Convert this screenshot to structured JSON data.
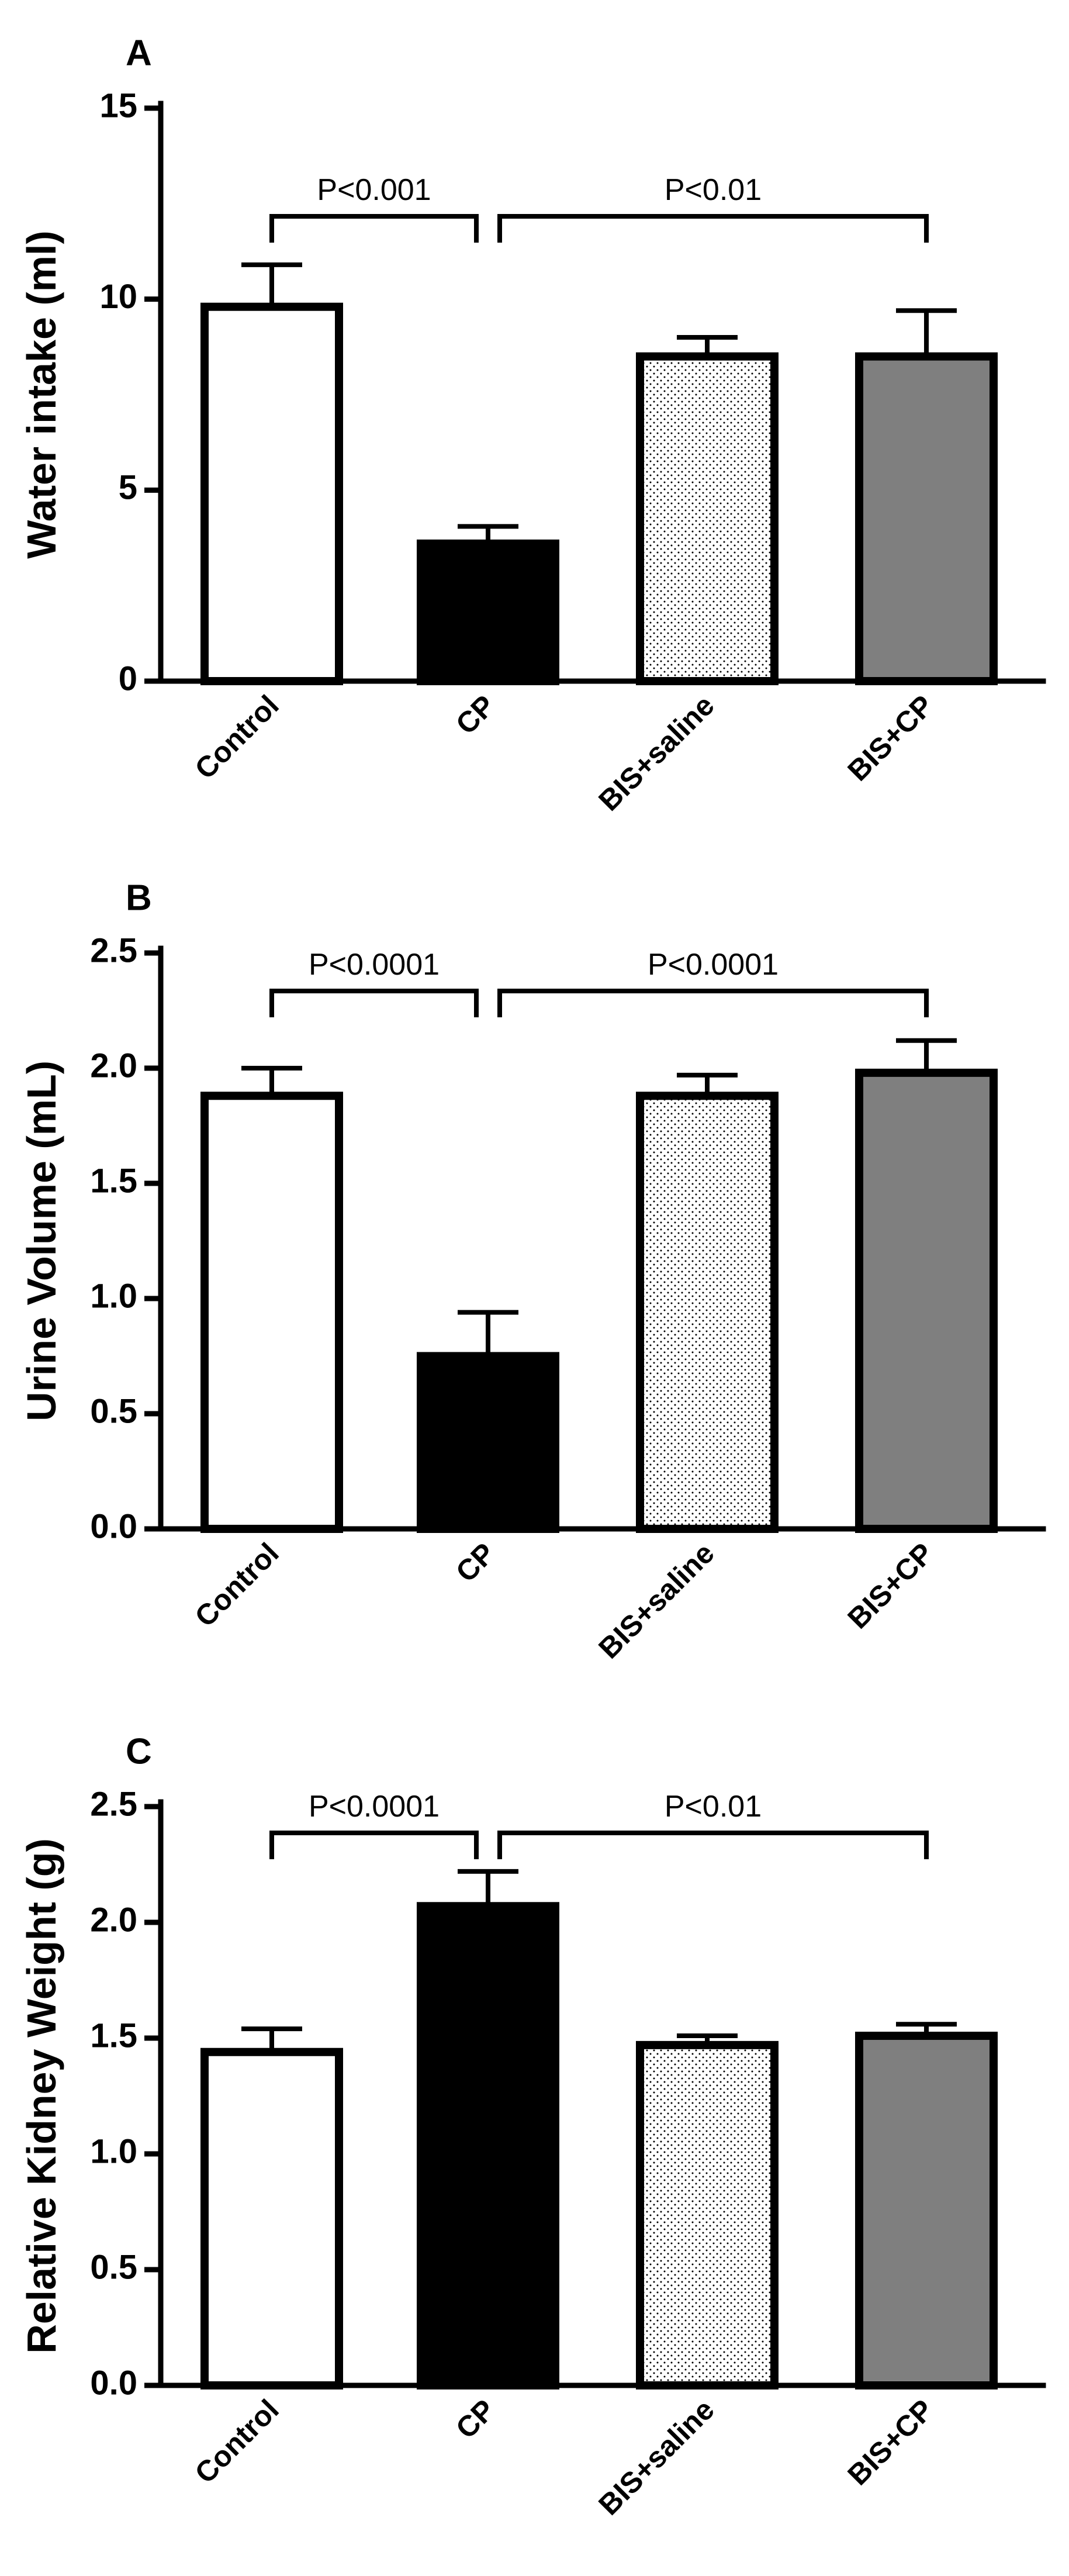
{
  "chart_data": [
    {
      "type": "bar",
      "panel": "A",
      "title": "",
      "xlabel": "",
      "ylabel": "Water intake (ml)",
      "ylim": [
        0,
        15
      ],
      "yticks": [
        0,
        5,
        10,
        15
      ],
      "ytick_labels": [
        "0",
        "5",
        "10",
        "15"
      ],
      "categories": [
        "Control",
        "CP",
        "BIS+saline",
        "BIS+CP"
      ],
      "values": [
        9.8,
        3.6,
        8.5,
        8.5
      ],
      "errors": [
        1.1,
        0.45,
        0.5,
        1.2
      ],
      "fills": [
        "white",
        "black",
        "dots",
        "gray"
      ],
      "brackets": [
        {
          "from": 0,
          "to": 1,
          "label": "P<0.001"
        },
        {
          "from": 1,
          "to": 3,
          "label": "P<0.01"
        }
      ]
    },
    {
      "type": "bar",
      "panel": "B",
      "title": "",
      "xlabel": "",
      "ylabel": "Urine Volume (mL)",
      "ylim": [
        0,
        2.5
      ],
      "yticks": [
        0,
        0.5,
        1.0,
        1.5,
        2.0,
        2.5
      ],
      "ytick_labels": [
        "0.0",
        "0.5",
        "1.0",
        "1.5",
        "2.0",
        "2.5"
      ],
      "categories": [
        "Control",
        "CP",
        "BIS+saline",
        "BIS+CP"
      ],
      "values": [
        1.88,
        0.75,
        1.88,
        1.98
      ],
      "errors": [
        0.12,
        0.19,
        0.09,
        0.14
      ],
      "fills": [
        "white",
        "black",
        "dots",
        "gray"
      ],
      "brackets": [
        {
          "from": 0,
          "to": 1,
          "label": "P<0.0001"
        },
        {
          "from": 1,
          "to": 3,
          "label": "P<0.0001"
        }
      ]
    },
    {
      "type": "bar",
      "panel": "C",
      "title": "",
      "xlabel": "",
      "ylabel": "Relative Kidney Weight (g)",
      "ylim": [
        0,
        2.5
      ],
      "yticks": [
        0,
        0.5,
        1.0,
        1.5,
        2.0,
        2.5
      ],
      "ytick_labels": [
        "0.0",
        "0.5",
        "1.0",
        "1.5",
        "2.0",
        "2.5"
      ],
      "categories": [
        "Control",
        "CP",
        "BIS+saline",
        "BIS+CP"
      ],
      "values": [
        1.44,
        2.07,
        1.47,
        1.51
      ],
      "errors": [
        0.1,
        0.15,
        0.04,
        0.05
      ],
      "fills": [
        "white",
        "black",
        "dots",
        "gray"
      ],
      "brackets": [
        {
          "from": 0,
          "to": 1,
          "label": "P<0.0001"
        },
        {
          "from": 1,
          "to": 3,
          "label": "P<0.01"
        }
      ]
    }
  ],
  "colors": {
    "white": "#ffffff",
    "black": "#000000",
    "gray": "#7f7f7f",
    "dots_bg": "#ffffff",
    "dots_fg": "#000000",
    "axis": "#000000"
  }
}
